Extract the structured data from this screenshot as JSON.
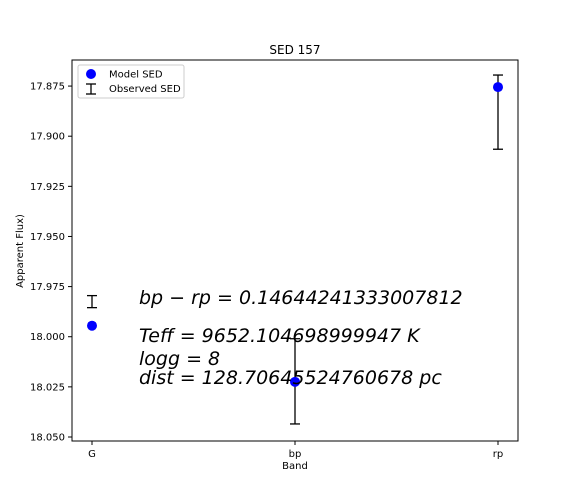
{
  "chart_data": {
    "type": "scatter",
    "title": "SED 157",
    "xlabel": "Band",
    "ylabel": "Apparent Flux)",
    "categories": [
      "G",
      "bp",
      "rp"
    ],
    "y_inverted": true,
    "ylim": [
      18.052,
      17.862
    ],
    "yticks": [
      "17.875",
      "17.900",
      "17.925",
      "17.950",
      "17.975",
      "18.000",
      "18.025",
      "18.050"
    ],
    "series": [
      {
        "name": "Model SED",
        "kind": "points",
        "color": "#0000ff",
        "values": [
          17.9945,
          18.0225,
          17.8755
        ]
      },
      {
        "name": "Observed SED",
        "kind": "errorbar",
        "color": "#000000",
        "values": [
          17.9825,
          18.0225,
          17.8755
        ],
        "yerr_low": [
          17.9795,
          18.001,
          17.8695
        ],
        "yerr_high": [
          17.9855,
          18.0435,
          17.9065
        ]
      }
    ],
    "annotations": [
      "bp − rp = 0.14644241333007812",
      "Teff = 9652.104698999947 K",
      "logg = 8",
      "dist = 128.70645524760678 pc"
    ],
    "legend_position": "top-left",
    "grid": false
  }
}
